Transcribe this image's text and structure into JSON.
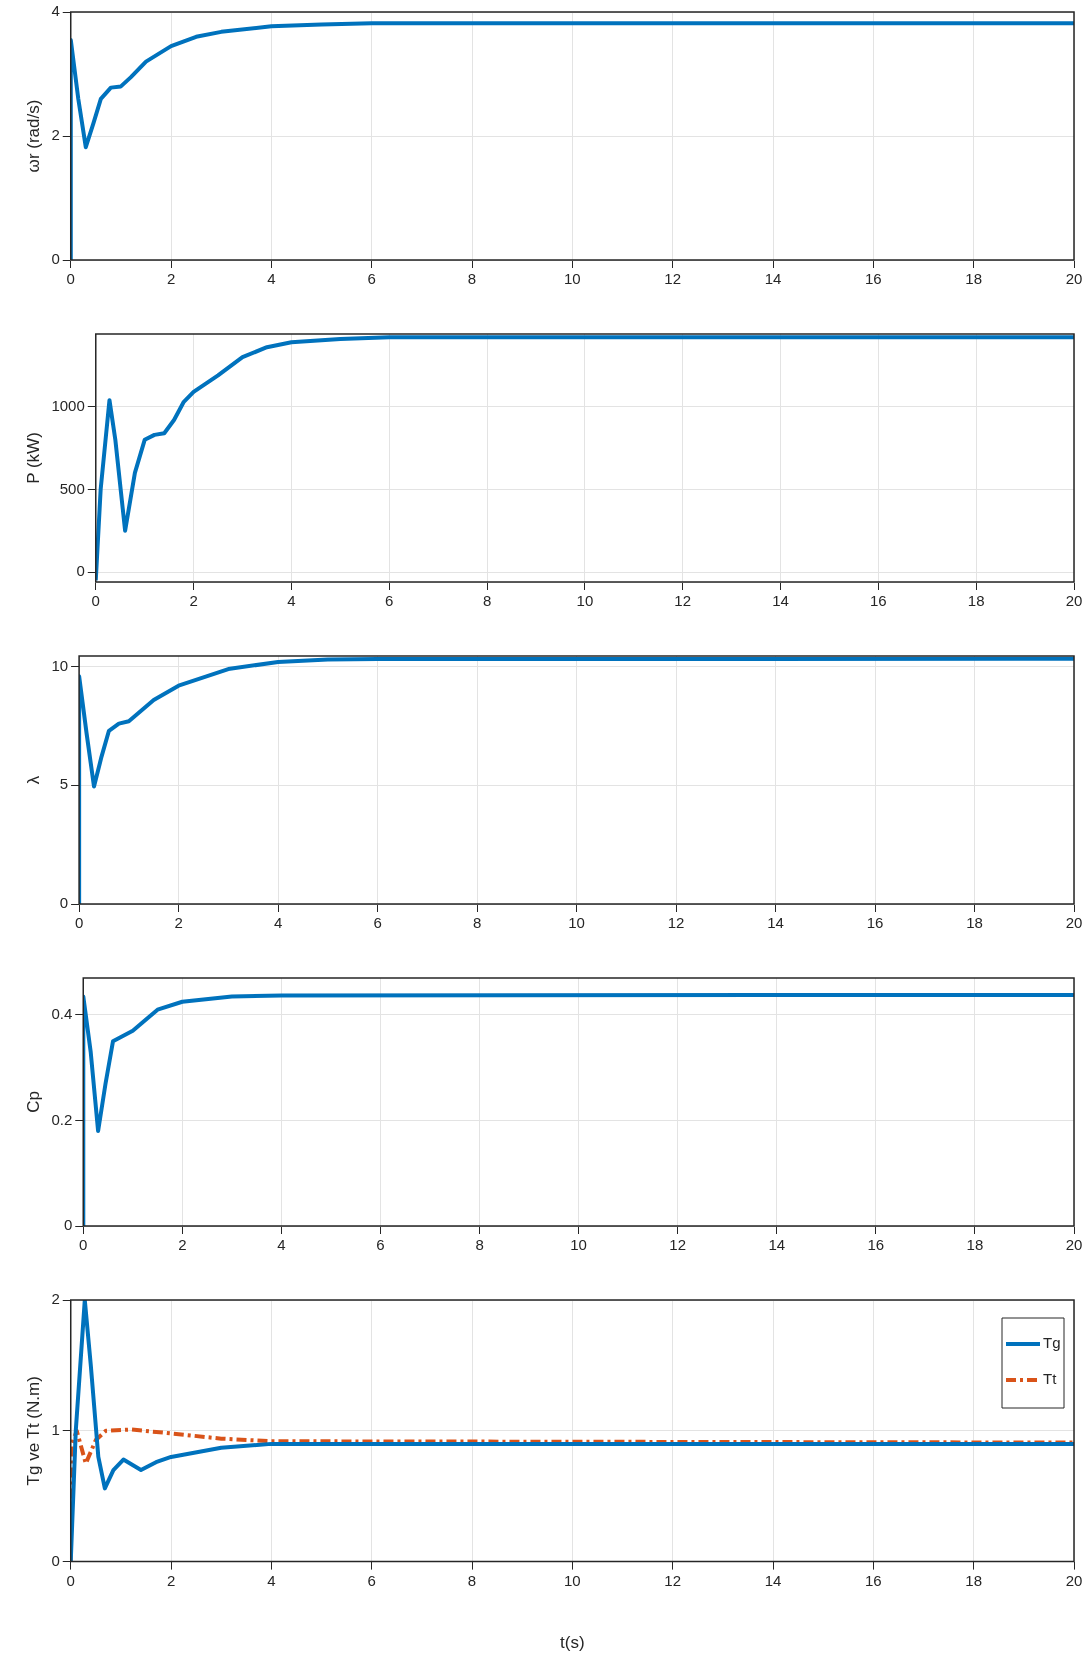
{
  "chart_data": [
    {
      "type": "line",
      "ylabel": "ωr (rad/s)",
      "x": [
        0,
        0.001,
        0.15,
        0.3,
        0.45,
        0.6,
        0.8,
        1.0,
        1.2,
        1.5,
        2,
        2.5,
        3,
        4,
        5,
        6,
        8,
        20
      ],
      "xlim": [
        0,
        20
      ],
      "xticks": [
        0,
        2,
        4,
        6,
        8,
        10,
        12,
        14,
        16,
        18,
        20
      ],
      "ylim": [
        0,
        4
      ],
      "yticks": [
        0,
        2,
        4
      ],
      "grid": true,
      "series": [
        {
          "color": "#0072bd",
          "values": [
            0,
            3.55,
            2.6,
            1.82,
            2.2,
            2.6,
            2.78,
            2.8,
            2.95,
            3.2,
            3.45,
            3.6,
            3.68,
            3.77,
            3.8,
            3.82,
            3.82,
            3.82
          ]
        }
      ]
    },
    {
      "type": "line",
      "ylabel": "P (kW)",
      "x": [
        0,
        0.1,
        0.28,
        0.4,
        0.6,
        0.8,
        1.0,
        1.2,
        1.4,
        1.6,
        1.8,
        2,
        2.5,
        3,
        3.5,
        4,
        5,
        6,
        20
      ],
      "xlim": [
        0,
        20
      ],
      "xticks": [
        0,
        2,
        4,
        6,
        8,
        10,
        12,
        14,
        16,
        18,
        20
      ],
      "ylim": [
        -60,
        1440
      ],
      "yticks": [
        0,
        500,
        1000
      ],
      "grid": true,
      "series": [
        {
          "color": "#0072bd",
          "values": [
            -50,
            500,
            1040,
            800,
            250,
            600,
            800,
            830,
            840,
            920,
            1030,
            1090,
            1190,
            1300,
            1360,
            1390,
            1410,
            1420,
            1420
          ]
        }
      ]
    },
    {
      "type": "line",
      "ylabel": "λ",
      "x": [
        0,
        0.001,
        0.15,
        0.3,
        0.45,
        0.6,
        0.8,
        1,
        1.5,
        2,
        3,
        4,
        5,
        6,
        20
      ],
      "xlim": [
        0,
        20
      ],
      "xticks": [
        0,
        2,
        4,
        6,
        8,
        10,
        12,
        14,
        16,
        18,
        20
      ],
      "ylim": [
        0,
        10.45
      ],
      "yticks": [
        0,
        5,
        10
      ],
      "grid": true,
      "series": [
        {
          "color": "#0072bd",
          "values": [
            0,
            9.6,
            7.2,
            4.95,
            6.2,
            7.3,
            7.6,
            7.7,
            8.6,
            9.2,
            9.9,
            10.2,
            10.3,
            10.32,
            10.33
          ]
        }
      ]
    },
    {
      "type": "line",
      "ylabel": "Cp",
      "x": [
        0,
        0.001,
        0.15,
        0.3,
        0.45,
        0.6,
        0.8,
        1,
        1.5,
        2,
        3,
        4,
        20
      ],
      "xlim": [
        0,
        20
      ],
      "xticks": [
        0,
        2,
        4,
        6,
        8,
        10,
        12,
        14,
        16,
        18,
        20
      ],
      "ylim": [
        0,
        0.47
      ],
      "yticks": [
        0,
        0.2,
        0.4
      ],
      "grid": true,
      "series": [
        {
          "color": "#0072bd",
          "values": [
            0,
            0.435,
            0.33,
            0.18,
            0.27,
            0.35,
            0.36,
            0.37,
            0.41,
            0.425,
            0.435,
            0.437,
            0.438
          ]
        }
      ]
    },
    {
      "type": "line",
      "ylabel": "Tg ve Tt (N.m)",
      "xlabel": "t(s)",
      "xlim": [
        0,
        20
      ],
      "xticks": [
        0,
        2,
        4,
        6,
        8,
        10,
        12,
        14,
        16,
        18,
        20
      ],
      "ylim": [
        0,
        2
      ],
      "yticks": [
        0,
        1,
        2
      ],
      "grid": true,
      "legend": "top right",
      "series": [
        {
          "name": "Tg",
          "color": "#0072bd",
          "x": [
            0,
            0.1,
            0.28,
            0.4,
            0.55,
            0.68,
            0.85,
            1.05,
            1.4,
            1.7,
            2,
            3,
            4,
            6,
            20
          ],
          "values": [
            0,
            1.0,
            2.0,
            1.5,
            0.8,
            0.56,
            0.7,
            0.78,
            0.7,
            0.76,
            0.8,
            0.87,
            0.9,
            0.9,
            0.9
          ]
        },
        {
          "name": "Tt",
          "color": "#d95319",
          "line_style": "dashed",
          "x": [
            0,
            0.02,
            0.12,
            0.3,
            0.5,
            0.7,
            1.2,
            2,
            3,
            4,
            20
          ],
          "values": [
            0,
            0.9,
            1.0,
            0.75,
            0.93,
            1.0,
            1.01,
            0.98,
            0.94,
            0.92,
            0.91
          ]
        }
      ]
    }
  ]
}
